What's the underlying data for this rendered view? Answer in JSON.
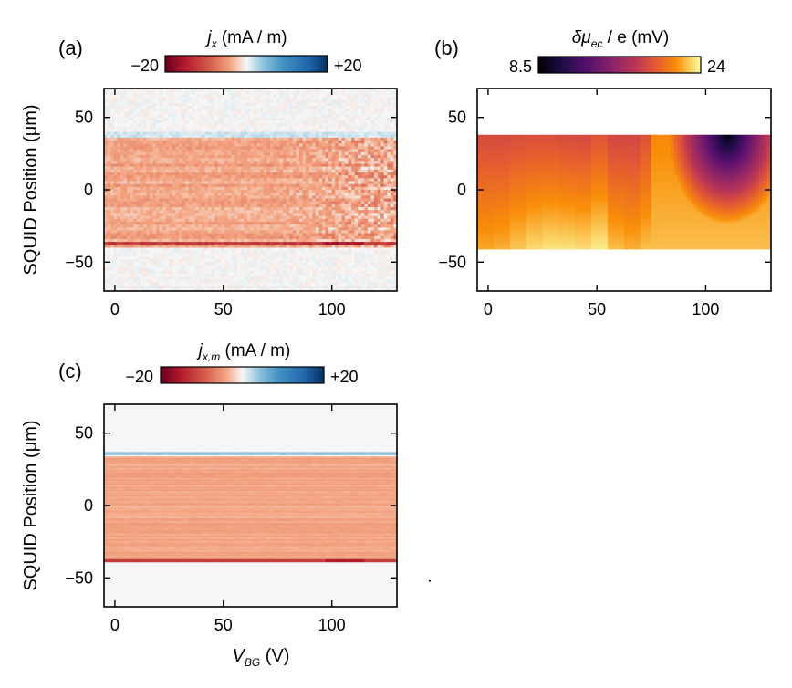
{
  "chart_data": [
    {
      "type": "heatmap",
      "panel_label": "(a)",
      "colorbar": {
        "label_symbol": "j",
        "label_sub": "x",
        "label_unit": " (mA / m)",
        "min_label": "−20",
        "max_label": "+20",
        "range": [
          -20,
          20
        ],
        "colormap": "RdBu (red = negative, blue = positive)"
      },
      "xlim": [
        -5,
        130
      ],
      "ylim": [
        -70,
        70
      ],
      "xticks": [
        0,
        50,
        100
      ],
      "yticks": [
        -50,
        0,
        50
      ],
      "xtick_labels": [
        "0",
        "50",
        "100"
      ],
      "ytick_labels": [
        "−50",
        "0",
        "50"
      ],
      "ylabel": "SQUID Position (μm)",
      "xlabel": "",
      "features": {
        "channel_y_range": [
          -40,
          36
        ],
        "channel_value_mA_per_m": -4,
        "edge_line_y": -37,
        "edge_line_value_mA_per_m": -12,
        "outside_value_mA_per_m": 0
      }
    },
    {
      "type": "heatmap",
      "panel_label": "(b)",
      "colorbar": {
        "label_symbol": "δμ",
        "label_sub": "ec",
        "label_unit": " / e (mV)",
        "min_label": "8.5",
        "max_label": "24",
        "range": [
          8.5,
          24
        ],
        "colormap": "inferno-like (black → purple → orange → yellow)"
      },
      "xlim": [
        -5,
        130
      ],
      "ylim": [
        -70,
        70
      ],
      "xticks": [
        0,
        50,
        100
      ],
      "yticks": [
        -50,
        0,
        50
      ],
      "xtick_labels": [
        "0",
        "50",
        "100"
      ],
      "ytick_labels": [
        "−50",
        "0",
        "50"
      ],
      "features": {
        "data_y_range": [
          -41,
          38
        ],
        "min_value_location_x_y": [
          110,
          38
        ],
        "min_value_mV": 8.5,
        "max_value_mV": 24
      }
    },
    {
      "type": "heatmap",
      "panel_label": "(c)",
      "colorbar": {
        "label_symbol": "j",
        "label_sub": "x,m",
        "label_unit": " (mA / m)",
        "min_label": "−20",
        "max_label": "+20",
        "range": [
          -20,
          20
        ],
        "colormap": "RdBu (red = negative, blue = positive)"
      },
      "xlim": [
        -5,
        130
      ],
      "ylim": [
        -70,
        70
      ],
      "xticks": [
        0,
        50,
        100
      ],
      "yticks": [
        -50,
        0,
        50
      ],
      "xtick_labels": [
        "0",
        "50",
        "100"
      ],
      "ytick_labels": [
        "−50",
        "0",
        "50"
      ],
      "ylabel": "SQUID Position (μm)",
      "xlabel_symbol": "V",
      "xlabel_sub": "BG",
      "xlabel_unit": " (V)",
      "features": {
        "channel_y_range": [
          -39,
          34
        ],
        "channel_value_mA_per_m": -4,
        "top_edge_y": 36,
        "top_edge_value_mA_per_m": 4,
        "bottom_edge_y": -38,
        "bottom_edge_value_mA_per_m": -12
      }
    }
  ]
}
